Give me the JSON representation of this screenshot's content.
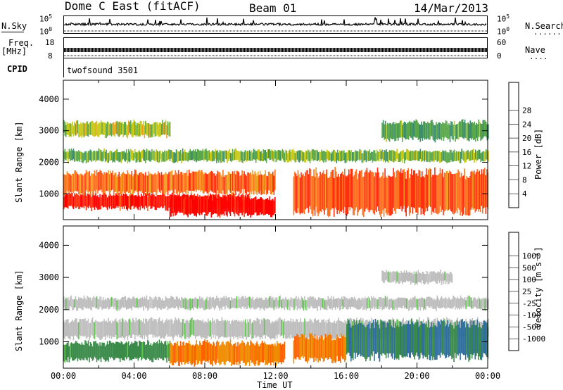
{
  "header": {
    "station": "Dome C East (fitACF)",
    "beam": "Beam 01",
    "date": "14/Mar/2013"
  },
  "top_panels": {
    "nsky_label": "N.Sky",
    "nsearch_label": "N.Search",
    "nsky_max": "10^5",
    "nsky_min": "10^0",
    "freq_label_1": "Freq.",
    "freq_label_2": "[MHz]",
    "freq_max": "18",
    "freq_min": "8",
    "nave_label": "Nave",
    "nave_max": "60",
    "nave_min": "0",
    "cpid_label": "CPID",
    "cpid_text": "twofsound 3501"
  },
  "x_axis": {
    "label": "Time UT",
    "ticks": [
      "00:00",
      "04:00",
      "08:00",
      "12:00",
      "16:00",
      "20:00",
      "00:00"
    ]
  },
  "colors": {
    "power": [
      "#0000ff",
      "#2a4fb0",
      "#3d8f6a",
      "#5aa84a",
      "#c8c818",
      "#f0a020",
      "#ff7020",
      "#ff3010",
      "#ff0000"
    ],
    "velocity": [
      "#1a3cb4",
      "#2f6fa0",
      "#3a8a4a",
      "#5ec84a",
      "#bdbdbd",
      "#c8c8c8",
      "#f08c00",
      "#ff6000",
      "#ff2000",
      "#ff0000"
    ]
  },
  "chart_data": [
    {
      "type": "heatmap",
      "panel": "power",
      "title": "",
      "xlabel": "Time UT",
      "ylabel": "Slant Range [km]",
      "xlim": [
        "00:00",
        "24:00"
      ],
      "ylim": [
        180,
        4600
      ],
      "yticks": [
        "1000",
        "2000",
        "3000",
        "4000"
      ],
      "colorbar_label": "Power [dB]",
      "colorbar_ticks": [
        "4",
        "8",
        "12",
        "16",
        "20",
        "24",
        "28"
      ],
      "colorbar_range": [
        0,
        30
      ],
      "bands": [
        {
          "t0": 0.0,
          "t1": 10.5,
          "r0": 500,
          "r1": 1000,
          "value": 28
        },
        {
          "t0": 0.0,
          "t1": 12.0,
          "r0": 1000,
          "r1": 1700,
          "value": 22
        },
        {
          "t0": 6.0,
          "t1": 12.0,
          "r0": 300,
          "r1": 900,
          "value": 30
        },
        {
          "t0": 13.0,
          "t1": 24.0,
          "r0": 400,
          "r1": 1700,
          "value": 24
        },
        {
          "t0": 0.0,
          "t1": 24.0,
          "r0": 2000,
          "r1": 2400,
          "value": 12
        },
        {
          "t0": 0.0,
          "t1": 6.0,
          "r0": 2800,
          "r1": 3300,
          "value": 14
        },
        {
          "t0": 18.0,
          "t1": 24.0,
          "r0": 2700,
          "r1": 3300,
          "value": 10
        }
      ]
    },
    {
      "type": "heatmap",
      "panel": "velocity",
      "title": "",
      "xlabel": "Time UT",
      "ylabel": "Slant Range [km]",
      "xlim": [
        "00:00",
        "24:00"
      ],
      "ylim": [
        180,
        4600
      ],
      "yticks": [
        "1000",
        "2000",
        "3000",
        "4000"
      ],
      "colorbar_label": "Velocity [m s⁻¹]",
      "colorbar_ticks": [
        "1000",
        "500",
        "100",
        "25",
        "-25",
        "-100",
        "-500",
        "-1000"
      ],
      "bands": [
        {
          "t0": 0.0,
          "t1": 6.0,
          "r0": 400,
          "r1": 1000,
          "value": 100
        },
        {
          "t0": 0.0,
          "t1": 24.0,
          "r0": 1100,
          "r1": 1700,
          "value": 0
        },
        {
          "t0": 6.0,
          "t1": 12.5,
          "r0": 300,
          "r1": 1000,
          "value": -300
        },
        {
          "t0": 13.0,
          "t1": 16.0,
          "r0": 400,
          "r1": 1200,
          "value": -300
        },
        {
          "t0": 16.0,
          "t1": 24.0,
          "r0": 500,
          "r1": 1600,
          "value": 300
        },
        {
          "t0": 0.0,
          "t1": 24.0,
          "r0": 2000,
          "r1": 2400,
          "value": 0
        },
        {
          "t0": 18.0,
          "t1": 22.0,
          "r0": 2800,
          "r1": 3200,
          "value": 0
        }
      ]
    }
  ]
}
